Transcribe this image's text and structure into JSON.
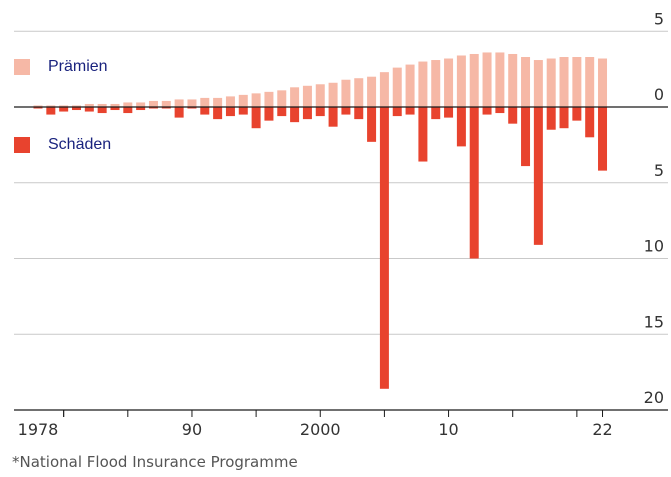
{
  "chart_data": {
    "type": "bar",
    "title": "",
    "xlabel": "",
    "ylabel": "",
    "ylim": [
      -20,
      5
    ],
    "y_tick_labels": [
      "5",
      "0",
      "5",
      "10",
      "15",
      "20"
    ],
    "y_tick_values": [
      5,
      0,
      -5,
      -10,
      -15,
      -20
    ],
    "x_tick_labels": [
      "1978",
      "90",
      "2000",
      "10",
      "22"
    ],
    "x_tick_years": [
      1978,
      1990,
      2000,
      2010,
      2022
    ],
    "minor_tick_years": [
      1980,
      1985,
      1995,
      2005,
      2015,
      2020
    ],
    "years": [
      1978,
      1979,
      1980,
      1981,
      1982,
      1983,
      1984,
      1985,
      1986,
      1987,
      1988,
      1989,
      1990,
      1991,
      1992,
      1993,
      1994,
      1995,
      1996,
      1997,
      1998,
      1999,
      2000,
      2001,
      2002,
      2003,
      2004,
      2005,
      2006,
      2007,
      2008,
      2009,
      2010,
      2011,
      2012,
      2013,
      2014,
      2015,
      2016,
      2017,
      2018,
      2019,
      2020,
      2021,
      2022
    ],
    "series": [
      {
        "name": "Prämien",
        "color": "#f6b8a6",
        "values": [
          0.1,
          0.1,
          0.1,
          0.1,
          0.2,
          0.2,
          0.2,
          0.3,
          0.3,
          0.4,
          0.4,
          0.5,
          0.5,
          0.6,
          0.6,
          0.7,
          0.8,
          0.9,
          1.0,
          1.1,
          1.3,
          1.4,
          1.5,
          1.6,
          1.8,
          1.9,
          2.0,
          2.3,
          2.6,
          2.8,
          3.0,
          3.1,
          3.2,
          3.4,
          3.5,
          3.6,
          3.6,
          3.5,
          3.3,
          3.1,
          3.2,
          3.3,
          3.3,
          3.3,
          3.2
        ]
      },
      {
        "name": "Schäden",
        "color": "#e8432e",
        "values": [
          -0.1,
          -0.5,
          -0.3,
          -0.2,
          -0.3,
          -0.4,
          -0.2,
          -0.4,
          -0.2,
          -0.1,
          -0.1,
          -0.7,
          -0.1,
          -0.5,
          -0.8,
          -0.6,
          -0.5,
          -1.4,
          -0.9,
          -0.6,
          -1.0,
          -0.8,
          -0.6,
          -1.3,
          -0.5,
          -0.8,
          -2.3,
          -18.6,
          -0.6,
          -0.5,
          -3.6,
          -0.8,
          -0.7,
          -2.6,
          -10.0,
          -0.5,
          -0.4,
          -1.1,
          -3.9,
          -9.1,
          -1.5,
          -1.4,
          -0.9,
          -2.0,
          -4.2
        ]
      }
    ]
  },
  "legend": {
    "premiums_label": "Prämien",
    "premiums_color": "#f6b8a6",
    "claims_label": "Schäden",
    "claims_color": "#e8432e"
  },
  "footnote": "*National Flood Insurance Programme"
}
